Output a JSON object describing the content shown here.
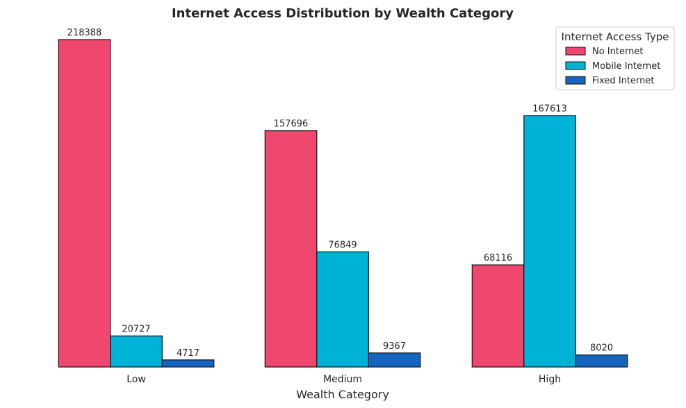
{
  "chart_data": {
    "type": "bar",
    "title": "Internet Access Distribution by Wealth Category",
    "xlabel": "Wealth Category",
    "ylabel": "",
    "categories": [
      "Low",
      "Medium",
      "High"
    ],
    "series": [
      {
        "name": "No Internet",
        "values": [
          218388,
          157696,
          68116
        ],
        "color": "#F0476E"
      },
      {
        "name": "Mobile Internet",
        "values": [
          20727,
          76849,
          167613
        ],
        "color": "#00B2D6"
      },
      {
        "name": "Fixed Internet",
        "values": [
          4717,
          9367,
          8020
        ],
        "color": "#1565C0"
      }
    ],
    "ylim": [
      0,
      230000
    ],
    "grid": false,
    "legend": {
      "title": "Internet Access Type",
      "placement": "top-right"
    },
    "bar_edge_color": "#111111"
  }
}
